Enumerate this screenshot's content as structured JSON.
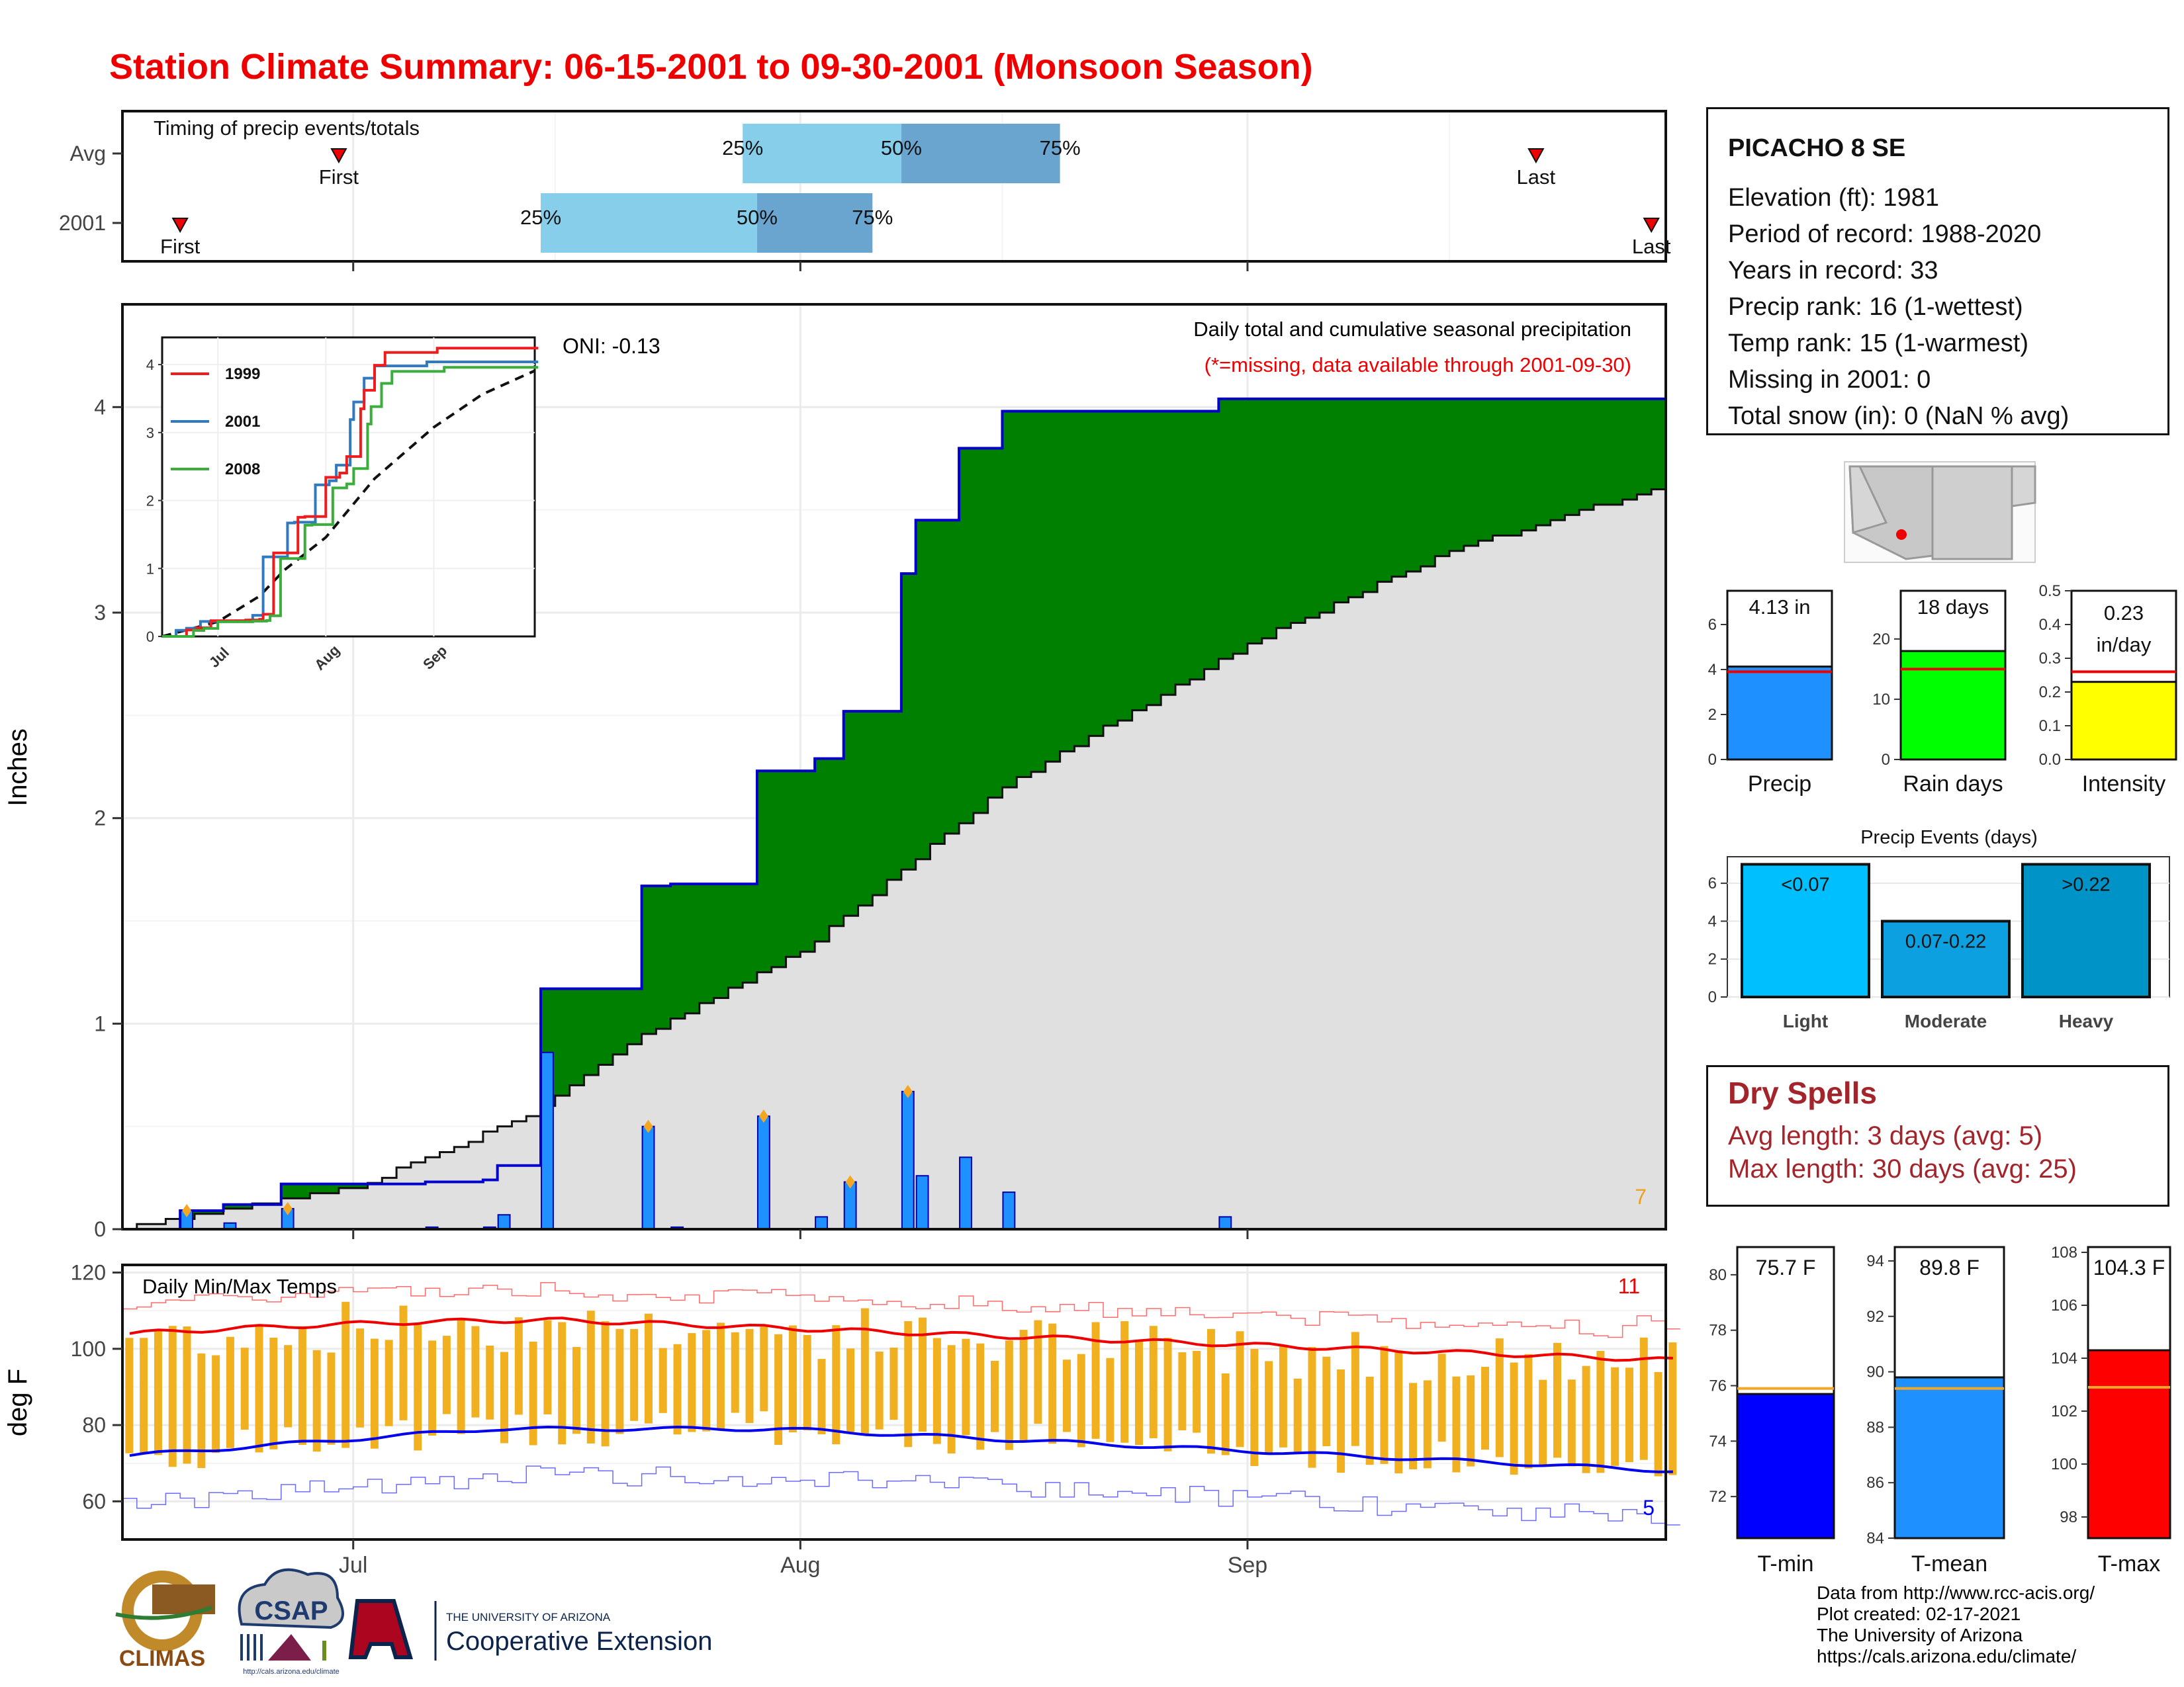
{
  "title": "Station Climate Summary: 06-15-2001 to 09-30-2001 (Monsoon Season)",
  "colors": {
    "title": "#ee0000",
    "cum_2001": "#0000cc",
    "above_avg_fill": "#008000",
    "below_avg_fill": "#8b5a00",
    "climatology_fill": "#e0e0e0",
    "daily_bar": "#1e90ff",
    "tmax_avg": "#ee0000",
    "tmin_avg": "#0000ee",
    "range_bar": "#f0b020",
    "dry_spell_text": "#a3242a",
    "light": "#00bfff",
    "moderate": "#0ca0e0",
    "heavy": "#0093c8"
  },
  "timing_panel": {
    "label": "Timing of precip events/totals",
    "rows": [
      {
        "name": "Avg",
        "first_label": "First",
        "last_label": "Last",
        "first": "06-30",
        "q25": "07-28",
        "q50": "08-08",
        "q75": "08-19",
        "last": "09-21",
        "p25": "25%",
        "p50": "50%",
        "p75": "75%"
      },
      {
        "name": "2001",
        "first_label": "First",
        "last_label": "Last",
        "first": "06-19",
        "q25": "07-14",
        "q50": "07-29",
        "q75": "08-06",
        "last": "09-29_",
        "p25": "25%",
        "p50": "50%",
        "p75": "75%"
      }
    ]
  },
  "precip_panel": {
    "ylabel": "Inches",
    "annotation_oni": "ONI: -0.13",
    "subtitle": "Daily total and cumulative seasonal precipitation",
    "missing_note": "(*=missing, data available through 2001-09-30)",
    "corner_count": "7",
    "yticks": [
      "0",
      "1",
      "2",
      "3",
      "4"
    ]
  },
  "temp_panel": {
    "label": "Daily Min/Max Temps",
    "ylabel": "deg F",
    "yticks": [
      "60",
      "80",
      "100",
      "120"
    ],
    "count_high": "11",
    "count_low": "5"
  },
  "xaxis": {
    "ticks": [
      "Jul",
      "Aug",
      "Sep"
    ]
  },
  "station": {
    "name": "PICACHO 8 SE",
    "elevation": "Elevation (ft): 1981",
    "period": "Period of record: 1988-2020",
    "years": "Years in record: 33",
    "precip_rank": "Precip rank: 16 (1-wettest)",
    "temp_rank": "Temp rank: 15 (1-warmest)",
    "missing": "Missing in 2001: 0",
    "snow": "Total snow (in): 0 (NaN % avg)"
  },
  "summary_bars": [
    {
      "label": "Precip",
      "value_label": "4.13 in",
      "value": 4.13,
      "avg": 3.9,
      "ymax": 7.5,
      "ticks": [
        "0",
        "2",
        "4",
        "6"
      ],
      "color": "#1e90ff"
    },
    {
      "label": "Rain days",
      "value_label": "18 days",
      "value": 18,
      "avg": 15,
      "ymax": 28,
      "ticks": [
        "0",
        "10",
        "20"
      ],
      "color": "#00ff00"
    },
    {
      "label": "Intensity",
      "value_label": "0.23 in/day",
      "value_label_1": "0.23",
      "value_label_2": "in/day",
      "value": 0.23,
      "avg": 0.26,
      "ymax": 0.5,
      "ticks": [
        "0.0",
        "0.1",
        "0.2",
        "0.3",
        "0.4",
        "0.5"
      ],
      "color": "#ffff00"
    }
  ],
  "precip_events": {
    "title": "Precip Events (days)",
    "bars": [
      {
        "label": "Light",
        "range": "<0.07",
        "value": 7
      },
      {
        "label": "Moderate",
        "range": "0.07-0.22",
        "value": 4
      },
      {
        "label": "Heavy",
        "range": ">0.22",
        "value": 7
      }
    ],
    "ticks": [
      "0",
      "2",
      "4",
      "6"
    ]
  },
  "dry_spells": {
    "title": "Dry Spells",
    "avg": "Avg length: 3 days (avg: 5)",
    "max": "Max length: 30 days (avg: 25)"
  },
  "temp_bars": [
    {
      "label": "T-min",
      "value_label": "75.7 F",
      "value": 75.7,
      "avg": 75.9,
      "ymin": 70.5,
      "ymax": 81,
      "ticks": [
        "72",
        "74",
        "76",
        "78",
        "80"
      ],
      "color": "#0000ff"
    },
    {
      "label": "T-mean",
      "value_label": "89.8 F",
      "value": 89.8,
      "avg": 89.4,
      "ymin": 84,
      "ymax": 94.5,
      "ticks": [
        "84",
        "86",
        "88",
        "90",
        "92",
        "94"
      ],
      "color": "#1e90ff"
    },
    {
      "label": "T-max",
      "value_label": "104.3 F",
      "value": 104.3,
      "avg": 102.9,
      "ymin": 97.2,
      "ymax": 108.2,
      "ticks": [
        "98",
        "100",
        "102",
        "104",
        "106",
        "108"
      ],
      "color": "#ff0000"
    }
  ],
  "inset": {
    "legend": [
      "1999",
      "2001",
      "2008"
    ],
    "legend_colors": [
      "#ee1c1c",
      "#2f7ac0",
      "#3aad3a"
    ],
    "yticks": [
      "0",
      "1",
      "2",
      "3",
      "4"
    ],
    "xticks": [
      "Jul",
      "Aug",
      "Sep"
    ]
  },
  "logos": {
    "climas": "CLIMAS",
    "csap": "CSAP",
    "csap_url": "http://cals.arizona.edu/climate",
    "ua_line1": "THE UNIVERSITY OF ARIZONA",
    "ua_line2": "Cooperative Extension"
  },
  "credits": {
    "line1": "Data from http://www.rcc-acis.org/",
    "line2": "Plot created: 02-17-2021",
    "line3": "The University of Arizona",
    "line4": "https://cals.arizona.edu/climate/"
  },
  "chart_data": [
    {
      "type": "area",
      "title": "Daily total and cumulative seasonal precipitation",
      "ylabel": "Inches",
      "ylim": [
        0,
        4.5
      ],
      "x_range": [
        "2001-06-15",
        "2001-09-30"
      ],
      "daily_precip_2001": [
        {
          "date": "06-19",
          "in": 0.09
        },
        {
          "date": "06-22",
          "in": 0.03
        },
        {
          "date": "06-26",
          "in": 0.1
        },
        {
          "date": "07-06",
          "in": 0.01
        },
        {
          "date": "07-10",
          "in": 0.01
        },
        {
          "date": "07-11",
          "in": 0.07
        },
        {
          "date": "07-14",
          "in": 0.86
        },
        {
          "date": "07-21",
          "in": 0.5
        },
        {
          "date": "07-23",
          "in": 0.01
        },
        {
          "date": "07-29",
          "in": 0.55
        },
        {
          "date": "08-02",
          "in": 0.06
        },
        {
          "date": "08-04",
          "in": 0.23
        },
        {
          "date": "08-08",
          "in": 0.67
        },
        {
          "date": "08-09",
          "in": 0.26
        },
        {
          "date": "08-12",
          "in": 0.35
        },
        {
          "date": "08-15",
          "in": 0.18
        },
        {
          "date": "08-30",
          "in": 0.06
        }
      ],
      "cumulative_2001_end": 4.13,
      "climatology_cumulative": [
        {
          "date": "06-15",
          "in": 0.0
        },
        {
          "date": "07-01",
          "in": 0.2
        },
        {
          "date": "07-13",
          "in": 0.55
        },
        {
          "date": "07-20",
          "in": 0.9
        },
        {
          "date": "08-01",
          "in": 1.35
        },
        {
          "date": "08-15",
          "in": 2.15
        },
        {
          "date": "09-01",
          "in": 2.85
        },
        {
          "date": "09-15",
          "in": 3.3
        },
        {
          "date": "09-30",
          "in": 3.62
        }
      ]
    },
    {
      "type": "line",
      "title": "Daily Min/Max Temps",
      "ylabel": "deg F",
      "ylim": [
        50,
        122
      ],
      "series": [
        {
          "name": "avg_tmax",
          "start": 104,
          "peak": 107.5,
          "end": 97
        },
        {
          "name": "avg_tmin",
          "start": 72,
          "peak": 79,
          "end": 68
        }
      ]
    }
  ]
}
